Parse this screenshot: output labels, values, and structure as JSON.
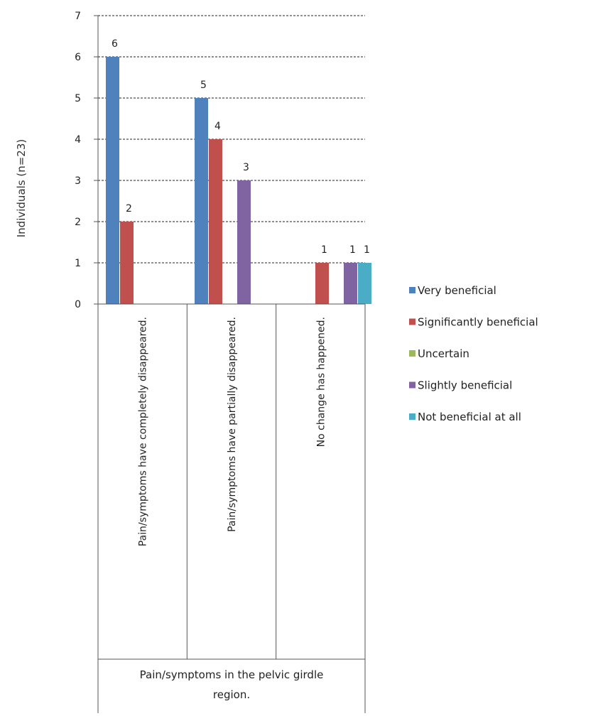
{
  "chart_data": {
    "type": "bar",
    "ylabel": "Individuals (n=23)",
    "ylim": [
      0,
      7
    ],
    "yticks": [
      0,
      1,
      2,
      3,
      4,
      5,
      6,
      7
    ],
    "grid": "horizontal dashed",
    "legend_position": "right",
    "group_label": "Pain/symptoms in the pelvic girdle region.",
    "categories": [
      "Pain/symptoms have completely disappeared.",
      "Pain/symptoms have partially disappeared.",
      "No change has happened."
    ],
    "series": [
      {
        "name": "Very beneficial",
        "color": "#4f81bd",
        "values": [
          6,
          5,
          0
        ]
      },
      {
        "name": "Significantly beneficial",
        "color": "#c0504d",
        "values": [
          2,
          4,
          1
        ]
      },
      {
        "name": "Uncertain",
        "color": "#9bbb59",
        "values": [
          0,
          0,
          0
        ]
      },
      {
        "name": "Slightly beneficial",
        "color": "#8064a2",
        "values": [
          0,
          3,
          1
        ]
      },
      {
        "name": "Not beneficial at all",
        "color": "#4bacc6",
        "values": [
          0,
          0,
          1
        ]
      }
    ]
  }
}
